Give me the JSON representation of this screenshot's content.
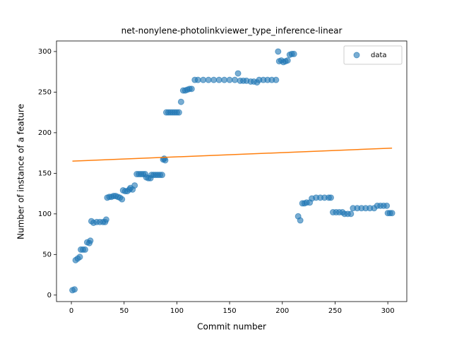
{
  "chart_data": {
    "type": "scatter",
    "title": "net-nonylene-photolinkviewer_type_inference-linear",
    "xlabel": "Commit number",
    "ylabel": "Number of instance of a feature",
    "xlim": [
      -14.1,
      318
    ],
    "ylim": [
      -8,
      313
    ],
    "xticks": [
      0,
      50,
      100,
      150,
      200,
      250,
      300
    ],
    "yticks": [
      0,
      50,
      100,
      150,
      200,
      250,
      300
    ],
    "legend": "upper right",
    "series": [
      {
        "name": "data",
        "color": "#1f77b4",
        "style": "points",
        "x": [
          1,
          3,
          4,
          6,
          8,
          9,
          11,
          13,
          15,
          17,
          18,
          19,
          21,
          24,
          27,
          30,
          32,
          33,
          34,
          36,
          38,
          40,
          42,
          44,
          46,
          48,
          49,
          51,
          53,
          55,
          56,
          58,
          60,
          62,
          64,
          66,
          68,
          70,
          71,
          73,
          75,
          76,
          78,
          80,
          82,
          84,
          86,
          87,
          88,
          89,
          90,
          92,
          94,
          96,
          98,
          100,
          102,
          104,
          106,
          108,
          110,
          112,
          114,
          117,
          120,
          125,
          130,
          135,
          140,
          145,
          150,
          155,
          158,
          160,
          163,
          166,
          170,
          173,
          176,
          178,
          182,
          186,
          190,
          194,
          196,
          197,
          199,
          201,
          203,
          205,
          207,
          209,
          211,
          215,
          217,
          219,
          221,
          223,
          226,
          228,
          232,
          236,
          240,
          244,
          246,
          248,
          251,
          254,
          257,
          259,
          262,
          265,
          267,
          271,
          275,
          279,
          283,
          287,
          290,
          293,
          296,
          299,
          300,
          302,
          304
        ],
        "values": [
          6,
          7,
          43,
          45,
          47,
          56,
          56,
          56,
          65,
          64,
          67,
          91,
          89,
          90,
          90,
          90,
          90,
          93,
          120,
          121,
          121,
          122,
          122,
          121,
          120,
          118,
          129,
          128,
          128,
          130,
          132,
          130,
          135,
          149,
          149,
          149,
          149,
          149,
          145,
          144,
          144,
          148,
          148,
          148,
          148,
          148,
          148,
          167,
          168,
          166,
          225,
          225,
          225,
          225,
          225,
          225,
          225,
          238,
          252,
          252,
          253,
          254,
          254,
          265,
          265,
          265,
          265,
          265,
          265,
          265,
          265,
          265,
          273,
          264,
          264,
          264,
          263,
          263,
          262,
          265,
          265,
          265,
          265,
          265,
          300,
          288,
          289,
          287,
          288,
          289,
          296,
          297,
          297,
          97,
          92,
          113,
          113,
          114,
          114,
          119,
          120,
          120,
          120,
          120,
          120,
          102,
          102,
          102,
          102,
          100,
          100,
          100,
          107,
          107,
          107,
          107,
          107,
          107,
          110,
          110,
          110,
          110,
          101,
          101,
          101
        ]
      },
      {
        "color": "#ff7f0e",
        "style": "line",
        "x": [
          1,
          304
        ],
        "values": [
          165,
          181
        ]
      }
    ]
  }
}
